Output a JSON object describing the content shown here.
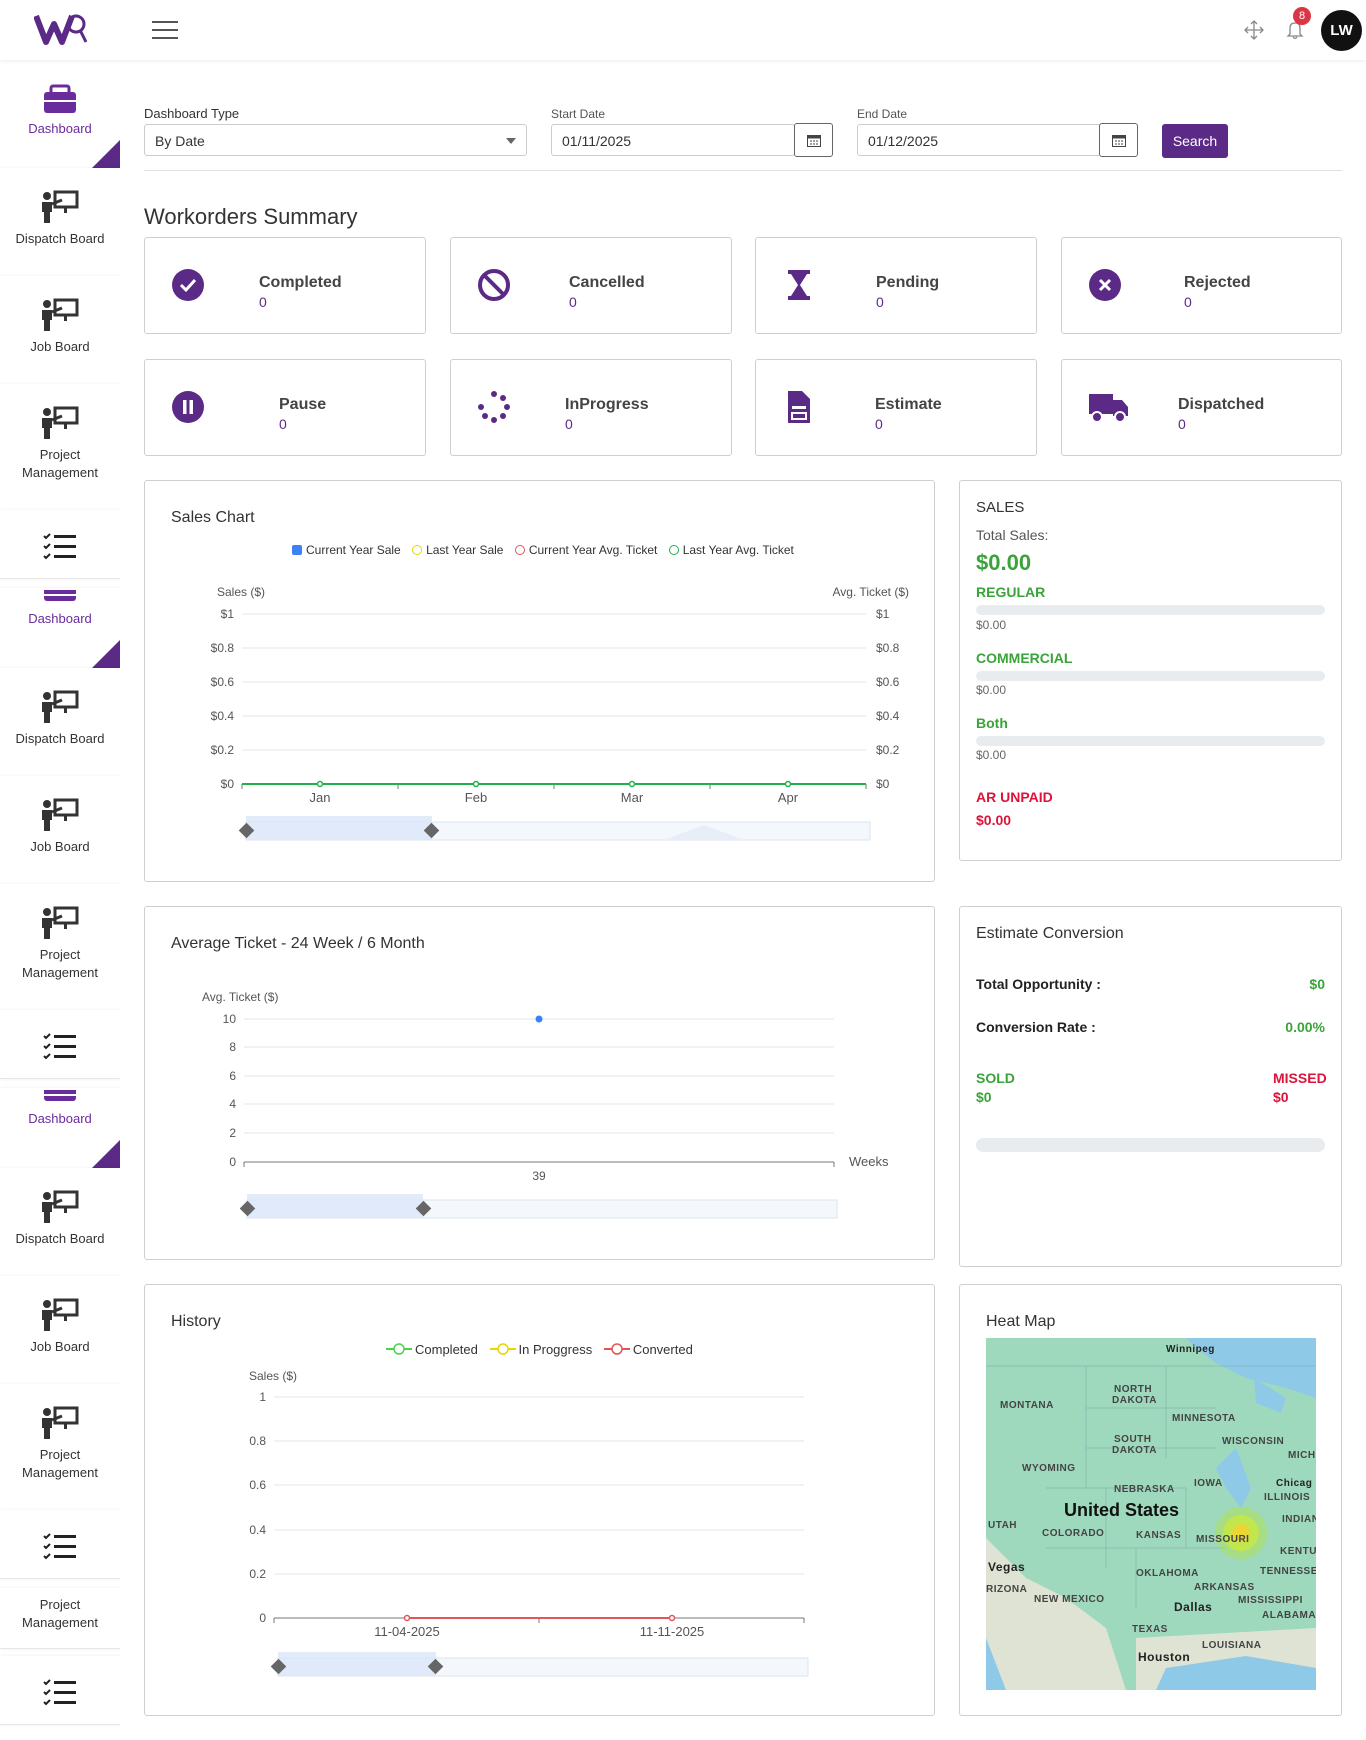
{
  "header": {
    "notification_count": "8",
    "avatar_initials": "LW"
  },
  "sidebar": {
    "items": [
      {
        "label": "Dashboard",
        "icon": "briefcase-icon",
        "active": true
      },
      {
        "label": "Dispatch Board",
        "icon": "presenter-icon"
      },
      {
        "label": "Job Board",
        "icon": "presenter-icon"
      },
      {
        "label": "Project Management",
        "icon": "presenter-icon"
      },
      {
        "label": "",
        "icon": "checklist-icon"
      }
    ]
  },
  "filters": {
    "dashboard_type_label": "Dashboard Type",
    "dashboard_type_value": "By Date",
    "start_date_label": "Start Date",
    "start_date_value": "01/11/2025",
    "end_date_label": "End Date",
    "end_date_value": "01/12/2025",
    "search_label": "Search"
  },
  "summary": {
    "title": "Workorders Summary",
    "cards": [
      {
        "label": "Completed",
        "value": "0",
        "icon": "check-circle-icon"
      },
      {
        "label": "Cancelled",
        "value": "0",
        "icon": "ban-icon"
      },
      {
        "label": "Pending",
        "value": "0",
        "icon": "hourglass-icon"
      },
      {
        "label": "Rejected",
        "value": "0",
        "icon": "x-circle-icon"
      },
      {
        "label": "Pause",
        "value": "0",
        "icon": "pause-circle-icon"
      },
      {
        "label": "InProgress",
        "value": "0",
        "icon": "spinner-icon"
      },
      {
        "label": "Estimate",
        "value": "0",
        "icon": "document-icon"
      },
      {
        "label": "Dispatched",
        "value": "0",
        "icon": "truck-icon"
      }
    ]
  },
  "sales_chart": {
    "title": "Sales Chart",
    "legend": [
      "Current Year Sale",
      "Last Year Sale",
      "Current Year Avg. Ticket",
      "Last Year Avg. Ticket"
    ],
    "y_left_title": "Sales ($)",
    "y_right_title": "Avg. Ticket ($)",
    "y_ticks": [
      "$1",
      "$0.8",
      "$0.6",
      "$0.4",
      "$0.2",
      "$0"
    ],
    "x_ticks": [
      "Jan",
      "Feb",
      "Mar",
      "Apr"
    ]
  },
  "sales": {
    "title": "SALES",
    "total_label": "Total Sales:",
    "total_value": "$0.00",
    "regular_label": "REGULAR",
    "regular_value": "$0.00",
    "commercial_label": "COMMERCIAL",
    "commercial_value": "$0.00",
    "both_label": "Both",
    "both_value": "$0.00",
    "ar_label": "AR UNPAID",
    "ar_value": "$0.00"
  },
  "avg_ticket": {
    "title": "Average Ticket - 24 Week / 6 Month",
    "y_title": "Avg. Ticket ($)",
    "y_ticks": [
      "10",
      "8",
      "6",
      "4",
      "2",
      "0"
    ],
    "x_title": "Weeks",
    "x_ticks": [
      "39"
    ]
  },
  "estimate_conversion": {
    "title": "Estimate Conversion",
    "total_opportunity_label": "Total Opportunity :",
    "total_opportunity_value": "$0",
    "conversion_rate_label": "Conversion Rate :",
    "conversion_rate_value": "0.00%",
    "sold_label": "SOLD",
    "sold_value": "$0",
    "missed_label": "MISSED",
    "missed_value": "$0"
  },
  "history": {
    "title": "History",
    "legend": [
      "Completed",
      "In Proggress",
      "Converted"
    ],
    "y_title": "Sales ($)",
    "y_ticks": [
      "1",
      "0.8",
      "0.6",
      "0.4",
      "0.2",
      "0"
    ],
    "x_ticks": [
      "11-04-2025",
      "11-11-2025"
    ]
  },
  "heat_map": {
    "title": "Heat Map",
    "labels": {
      "country": "United States",
      "winnipeg": "Winnipeg",
      "north_dakota_1": "NORTH",
      "north_dakota_2": "DAKOTA",
      "montana": "MONTANA",
      "minnesota": "MINNESOTA",
      "south_dakota_1": "SOUTH",
      "south_dakota_2": "DAKOTA",
      "wisconsin": "WISCONSIN",
      "michigan": "MICHI",
      "wyoming": "WYOMING",
      "nebraska": "NEBRASKA",
      "iowa": "IOWA",
      "chicago": "Chicag",
      "illinois": "ILLINOIS",
      "utah": "UTAH",
      "colorado": "COLORADO",
      "kansas": "KANSAS",
      "missouri": "MISSOURI",
      "indiana": "INDIANA",
      "kentucky": "KENTU",
      "vegas": "Vegas",
      "oklahoma": "OKLAHOMA",
      "tennessee": "TENNESSEE",
      "arizona": "RIZONA",
      "new_mexico": "NEW MEXICO",
      "arkansas": "ARKANSAS",
      "mississippi": "MISSISSIPPI",
      "dallas": "Dallas",
      "alabama": "ALABAMA",
      "texas": "TEXAS",
      "louisiana": "LOUISIANA",
      "houston": "Houston"
    }
  },
  "colors": {
    "brand": "#5b2a86",
    "success": "#3aa33a",
    "danger": "#dc143c",
    "current_year_sale": "#3b82f6",
    "last_year_sale": "#e6d800",
    "current_year_avg": "#e05555",
    "last_year_avg": "#22b04b"
  }
}
